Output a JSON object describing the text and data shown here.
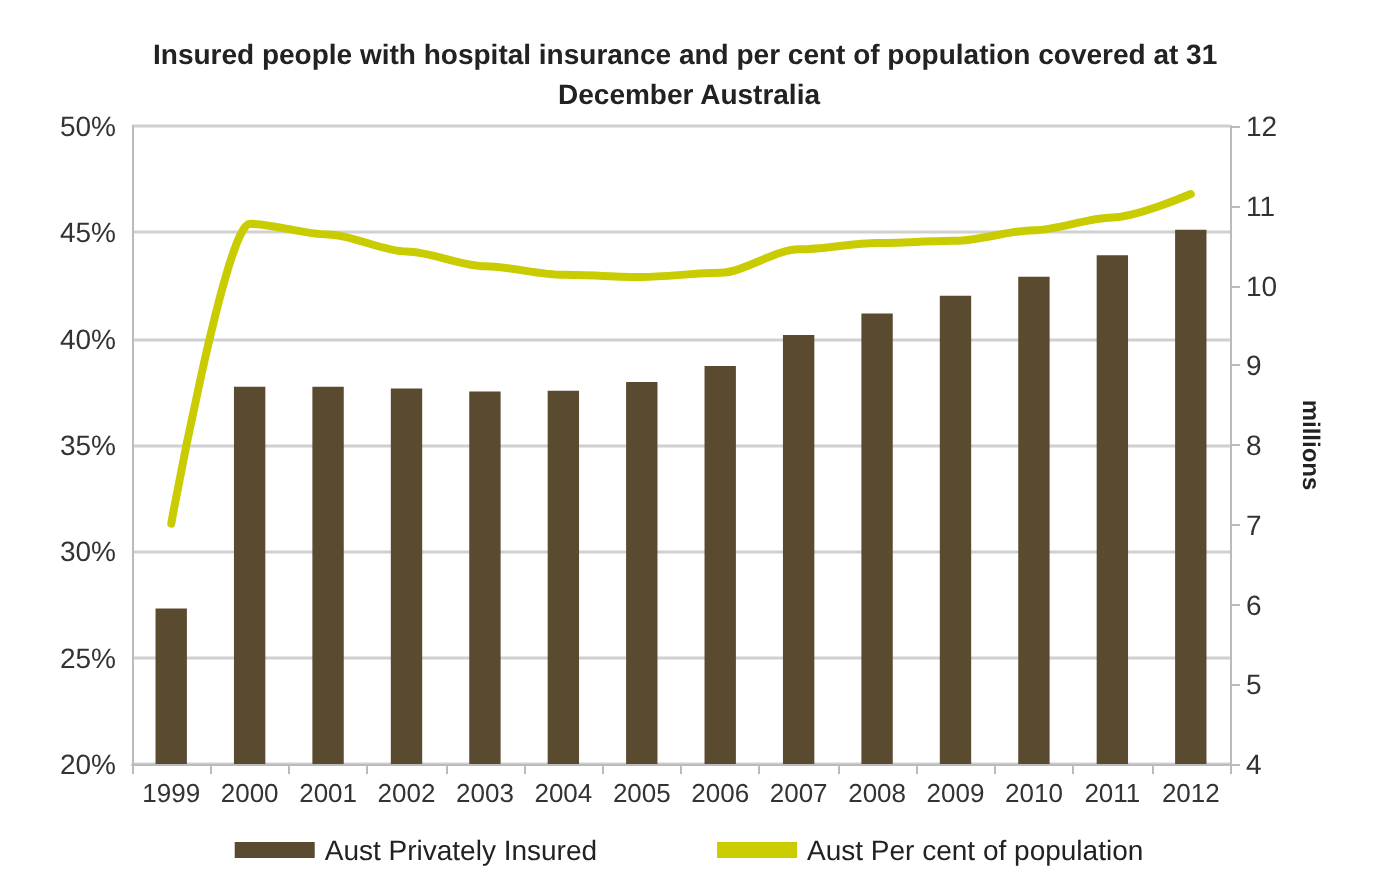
{
  "chart_data": {
    "type": "bar",
    "title": "Insured people with hospital insurance and per cent of population covered at 31 December Australia",
    "y2label": "millions",
    "categories": [
      "1999",
      "2000",
      "2001",
      "2002",
      "2003",
      "2004",
      "2005",
      "2006",
      "2007",
      "2008",
      "2009",
      "2010",
      "2011",
      "2012"
    ],
    "series": [
      {
        "name": "Aust Privately Insured",
        "axis": "y2",
        "color": "#594a30",
        "values": [
          5.95,
          8.73,
          8.73,
          8.71,
          8.67,
          8.68,
          8.79,
          8.99,
          9.38,
          9.65,
          9.87,
          10.11,
          10.38,
          10.7
        ]
      },
      {
        "name": "Aust Per cent of population",
        "type": "line",
        "color": "#c8cc00",
        "values": [
          31.3,
          45.4,
          44.9,
          44.1,
          43.4,
          43.0,
          42.9,
          43.1,
          44.2,
          44.5,
          44.6,
          45.1,
          45.7,
          46.8
        ]
      }
    ],
    "ylim": [
      20,
      50
    ],
    "yticks": [
      {
        "value": 20,
        "label": "20%"
      },
      {
        "value": 25,
        "label": "25%"
      },
      {
        "value": 30,
        "label": "30%"
      },
      {
        "value": 35,
        "label": "35%"
      },
      {
        "value": 40,
        "label": "40%"
      },
      {
        "value": 45,
        "label": "45%"
      },
      {
        "value": 50,
        "label": "50%"
      }
    ],
    "y2lim": [
      4,
      12
    ],
    "y2ticks": [
      4,
      5,
      6,
      7,
      8,
      9,
      10,
      11,
      12
    ],
    "grid": "y",
    "legend": "bottom",
    "marker": "none",
    "line_style": "solid"
  }
}
